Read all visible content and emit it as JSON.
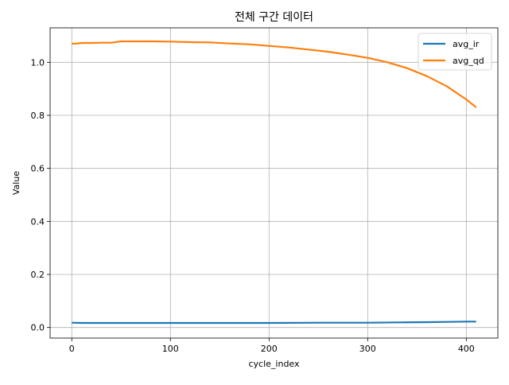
{
  "chart_data": {
    "type": "line",
    "title": "전체 구간 데이터",
    "xlabel": "cycle_index",
    "ylabel": "Value",
    "xlim": [
      -22,
      432
    ],
    "ylim": [
      -0.04,
      1.13
    ],
    "xticks": [
      0,
      100,
      200,
      300,
      400
    ],
    "yticks": [
      0.0,
      0.2,
      0.4,
      0.6,
      0.8,
      1.0
    ],
    "xtick_labels": [
      "0",
      "100",
      "200",
      "300",
      "400"
    ],
    "ytick_labels": [
      "0.0",
      "0.2",
      "0.4",
      "0.6",
      "0.8",
      "1.0"
    ],
    "grid": true,
    "legend_position": "top-right",
    "series": [
      {
        "name": "avg_ir",
        "color": "#1f77b4",
        "x": [
          0,
          10,
          20,
          50,
          100,
          150,
          200,
          250,
          300,
          330,
          360,
          380,
          400,
          410
        ],
        "y": [
          0.018,
          0.017,
          0.017,
          0.017,
          0.017,
          0.017,
          0.017,
          0.018,
          0.018,
          0.019,
          0.02,
          0.021,
          0.022,
          0.022
        ]
      },
      {
        "name": "avg_qd",
        "color": "#ff7f0e",
        "x": [
          0,
          5,
          10,
          20,
          30,
          40,
          50,
          60,
          80,
          100,
          120,
          140,
          160,
          180,
          200,
          220,
          240,
          260,
          280,
          300,
          320,
          340,
          360,
          380,
          400,
          410
        ],
        "y": [
          1.07,
          1.071,
          1.073,
          1.073,
          1.074,
          1.074,
          1.079,
          1.079,
          1.079,
          1.078,
          1.076,
          1.075,
          1.071,
          1.068,
          1.062,
          1.056,
          1.048,
          1.04,
          1.029,
          1.017,
          1.0,
          0.978,
          0.948,
          0.91,
          0.86,
          0.83
        ]
      }
    ]
  }
}
